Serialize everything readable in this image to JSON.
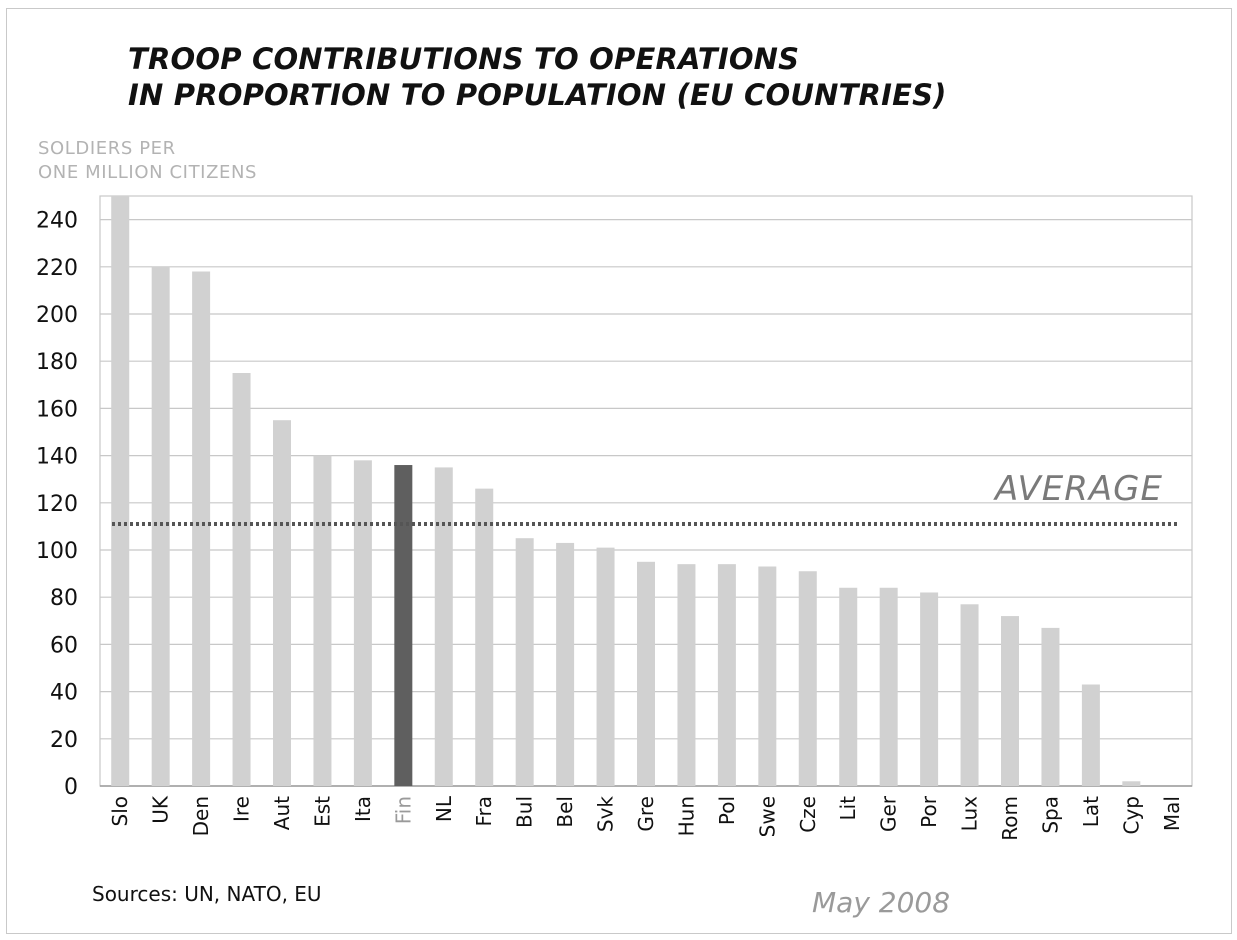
{
  "title_line1": "TROOP CONTRIBUTIONS TO OPERATIONS",
  "title_line2": "IN PROPORTION TO POPULATION (EU COUNTRIES)",
  "ylabel_line1": "SOLDIERS PER",
  "ylabel_line2": "ONE MILLION CITIZENS",
  "sources": "Sources: UN, NATO, EU",
  "date": "May 2008",
  "colors": {
    "bar": "#d1d1d1",
    "highlight_bar": "#5f5f5f",
    "grid": "#c8c8c8",
    "average_line": "#555555",
    "highlight_label": "#9a9a9a"
  },
  "chart_data": {
    "type": "bar",
    "categories": [
      "Slo",
      "UK",
      "Den",
      "Ire",
      "Aut",
      "Est",
      "Ita",
      "Fin",
      "NL",
      "Fra",
      "Bul",
      "Bel",
      "Svk",
      "Gre",
      "Hun",
      "Pol",
      "Swe",
      "Cze",
      "Lit",
      "Ger",
      "Por",
      "Lux",
      "Rom",
      "Spa",
      "Lat",
      "Cyp",
      "Mal"
    ],
    "values": [
      250,
      220,
      218,
      175,
      155,
      140,
      138,
      136,
      135,
      126,
      105,
      103,
      101,
      95,
      94,
      94,
      93,
      91,
      84,
      84,
      82,
      77,
      72,
      67,
      43,
      2,
      0
    ],
    "highlight": "Fin",
    "yticks": [
      0,
      20,
      40,
      60,
      80,
      100,
      120,
      140,
      160,
      180,
      200,
      220,
      240
    ],
    "ylim": [
      0,
      250
    ],
    "average": {
      "label": "AVERAGE",
      "value": 111
    },
    "grid": true,
    "title": "TROOP CONTRIBUTIONS TO OPERATIONS IN PROPORTION TO POPULATION (EU COUNTRIES)",
    "ylabel": "SOLDIERS PER ONE MILLION CITIZENS",
    "xlabel": ""
  }
}
